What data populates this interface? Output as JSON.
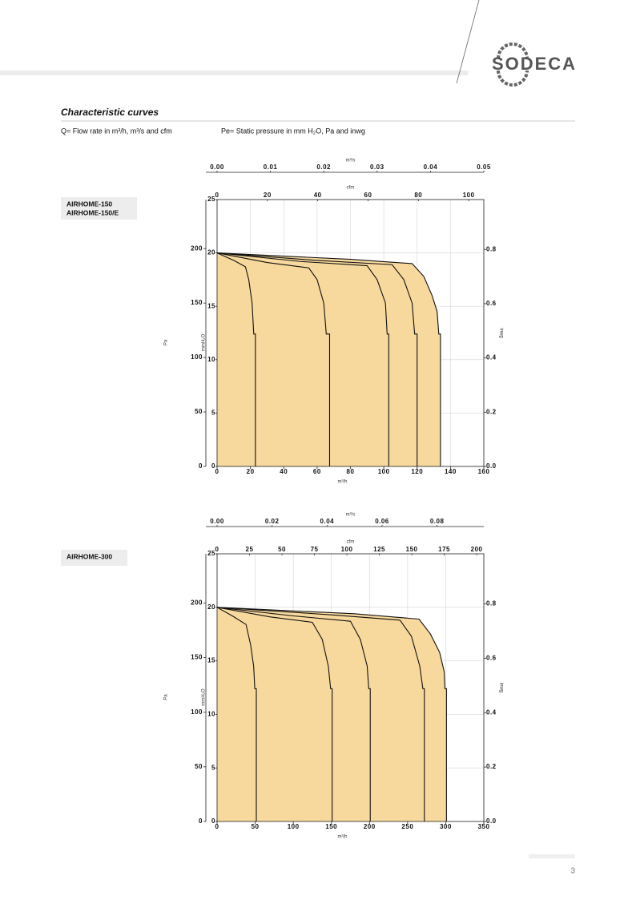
{
  "header": {
    "logo": "SODECA",
    "page_number": "3"
  },
  "section": {
    "title": "Characteristic curves",
    "notes": [
      "Q= Flow rate in m³/h, m³/s and cfm",
      "Pe= Static pressure in mm H₂O, Pa and inwg"
    ]
  },
  "chart_data": [
    {
      "type": "line",
      "models": [
        "AIRHOME-150",
        "AIRHOME-150/E"
      ],
      "xlabel": "m³/h",
      "ylabel": "Pa",
      "y2label": "mmH₂O",
      "y3label": "inwg",
      "x2label": "m³/s",
      "x3label": "cfm",
      "fill_color": "#f8d99d",
      "line_color": "#111111",
      "grid": true,
      "xlim": [
        0,
        160
      ],
      "xticks": [
        0,
        20,
        40,
        60,
        80,
        100,
        120,
        140,
        160
      ],
      "x2lim": [
        0,
        0.05
      ],
      "x2ticks": [
        {
          "value": 0,
          "label": "0.00"
        },
        {
          "value": 0.01,
          "label": "0.01"
        },
        {
          "value": 0.02,
          "label": "0.02"
        },
        {
          "value": 0.03,
          "label": "0.03"
        },
        {
          "value": 0.04,
          "label": "0.04"
        },
        {
          "value": 0.05,
          "label": "0.05"
        }
      ],
      "x3lim": [
        0,
        106
      ],
      "x3ticks": [
        0,
        20,
        40,
        60,
        80,
        100
      ],
      "ylim": [
        0,
        245
      ],
      "yticks": [
        0,
        50,
        100,
        150,
        200
      ],
      "y2lim": [
        0,
        25
      ],
      "y2ticks": [
        0,
        5,
        10,
        15,
        20,
        25
      ],
      "y3lim": [
        0,
        0.984
      ],
      "y3ticks": [
        {
          "value": 0,
          "label": "0.0"
        },
        0.2,
        0.4,
        0.6,
        0.8
      ],
      "series": [
        {
          "x": [
            0,
            10,
            17,
            19,
            21,
            22,
            23,
            23
          ],
          "values": [
            20,
            19.3,
            18.7,
            17.5,
            15.3,
            12.4,
            12.4,
            0
          ]
        },
        {
          "x": [
            0,
            30,
            55,
            60,
            64,
            65.5,
            67.5,
            67.5
          ],
          "values": [
            20,
            19.1,
            18.6,
            17.5,
            15.3,
            12.4,
            12.4,
            0
          ]
        },
        {
          "x": [
            0,
            50,
            90,
            96,
            101,
            102,
            103,
            103
          ],
          "values": [
            20,
            19.2,
            18.8,
            17.5,
            15.3,
            12.4,
            12.4,
            0
          ]
        },
        {
          "x": [
            0,
            60,
            105,
            112,
            117,
            118.5,
            120,
            120
          ],
          "values": [
            20,
            19.3,
            18.9,
            17.5,
            15.3,
            12.4,
            12.4,
            0
          ]
        },
        {
          "x": [
            0,
            80,
            117,
            124,
            129,
            132,
            133,
            134,
            134
          ],
          "values": [
            20,
            19.4,
            19.0,
            17.8,
            16,
            14.5,
            12.4,
            12.4,
            0
          ]
        }
      ]
    },
    {
      "type": "line",
      "models": [
        "AIRHOME-300"
      ],
      "xlabel": "m³/h",
      "ylabel": "Pa",
      "y2label": "mmH₂O",
      "y3label": "inwg",
      "x2label": "m³/s",
      "x3label": "cfm",
      "fill_color": "#f8d99d",
      "line_color": "#111111",
      "grid": true,
      "xlim": [
        0,
        350
      ],
      "xticks": [
        0,
        50,
        100,
        150,
        200,
        250,
        300,
        350
      ],
      "x2lim": [
        0,
        0.097
      ],
      "x2ticks": [
        {
          "value": 0,
          "label": "0.00"
        },
        {
          "value": 0.02,
          "label": "0.02"
        },
        {
          "value": 0.04,
          "label": "0.04"
        },
        {
          "value": 0.06,
          "label": "0.06"
        },
        {
          "value": 0.08,
          "label": "0.08"
        }
      ],
      "x3lim": [
        0,
        205.5
      ],
      "x3ticks": [
        0,
        25,
        50,
        75,
        100,
        125,
        150,
        175,
        200
      ],
      "ylim": [
        0,
        245
      ],
      "yticks": [
        0,
        50,
        100,
        150,
        200
      ],
      "y2lim": [
        0,
        25
      ],
      "y2ticks": [
        0,
        5,
        10,
        15,
        20,
        25
      ],
      "y3lim": [
        0,
        0.984
      ],
      "y3ticks": [
        {
          "value": 0,
          "label": "0.0"
        },
        0.2,
        0.4,
        0.6,
        0.8
      ],
      "series": [
        {
          "x": [
            0,
            20,
            38,
            44,
            48,
            49.5,
            51.5,
            51.5
          ],
          "values": [
            20,
            19.2,
            18.4,
            16.5,
            14.5,
            12.4,
            12.4,
            0
          ]
        },
        {
          "x": [
            0,
            70,
            125,
            138,
            146,
            149,
            151,
            151
          ],
          "values": [
            20,
            19.1,
            18.6,
            17,
            14.5,
            12.4,
            12.4,
            0
          ]
        },
        {
          "x": [
            0,
            100,
            175,
            188,
            197,
            199,
            201,
            201
          ],
          "values": [
            20,
            19.2,
            18.7,
            17,
            14.5,
            12.4,
            12.4,
            0
          ]
        },
        {
          "x": [
            0,
            150,
            240,
            255,
            266,
            270,
            272,
            272
          ],
          "values": [
            20,
            19.3,
            18.8,
            17.3,
            14.5,
            12.4,
            12.4,
            0
          ]
        },
        {
          "x": [
            0,
            180,
            265,
            280,
            292,
            298,
            299,
            301,
            301
          ],
          "values": [
            20,
            19.4,
            18.9,
            17.5,
            15.8,
            14,
            12.4,
            12.4,
            0
          ]
        }
      ]
    }
  ]
}
